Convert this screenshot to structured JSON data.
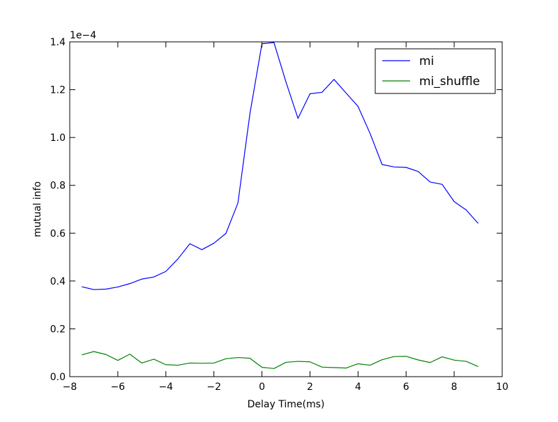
{
  "chart_data": {
    "type": "line",
    "title": "",
    "xlabel": "Delay Time(ms)",
    "ylabel": "mutual info",
    "y_offset_text": "1e−4",
    "xlim": [
      -8,
      10
    ],
    "ylim": [
      0.0,
      1.4
    ],
    "xticks": [
      -8,
      -6,
      -4,
      -2,
      0,
      2,
      4,
      6,
      8,
      10
    ],
    "xtick_labels": [
      "−8",
      "−6",
      "−4",
      "−2",
      "0",
      "2",
      "4",
      "6",
      "8",
      "10"
    ],
    "yticks": [
      0.0,
      0.2,
      0.4,
      0.6,
      0.8,
      1.0,
      1.2,
      1.4
    ],
    "ytick_labels": [
      "0.0",
      "0.2",
      "0.4",
      "0.6",
      "0.8",
      "1.0",
      "1.2",
      "1.4"
    ],
    "grid": false,
    "legend_position": "top-right",
    "x": [
      -7.5,
      -7.0,
      -6.5,
      -6.0,
      -5.5,
      -5.0,
      -4.5,
      -4.0,
      -3.5,
      -3.0,
      -2.5,
      -2.0,
      -1.5,
      -1.0,
      -0.5,
      0.0,
      0.5,
      1.0,
      1.5,
      2.0,
      2.5,
      3.0,
      3.5,
      4.0,
      4.5,
      5.0,
      5.5,
      6.0,
      6.5,
      7.0,
      7.5,
      8.0,
      8.5,
      9.0
    ],
    "series": [
      {
        "name": "mi",
        "color": "#0000ff",
        "values": [
          0.376,
          0.364,
          0.366,
          0.375,
          0.389,
          0.408,
          0.417,
          0.44,
          0.492,
          0.556,
          0.531,
          0.558,
          0.599,
          0.726,
          1.1,
          1.392,
          1.397,
          1.232,
          1.08,
          1.183,
          1.189,
          1.243,
          1.186,
          1.13,
          1.017,
          0.887,
          0.877,
          0.875,
          0.858,
          0.814,
          0.804,
          0.732,
          0.697,
          0.641
        ]
      },
      {
        "name": "mi_shuffle",
        "color": "#008000",
        "values": [
          0.091,
          0.105,
          0.093,
          0.068,
          0.094,
          0.057,
          0.073,
          0.05,
          0.048,
          0.057,
          0.056,
          0.057,
          0.075,
          0.08,
          0.077,
          0.039,
          0.034,
          0.06,
          0.064,
          0.062,
          0.04,
          0.038,
          0.036,
          0.054,
          0.048,
          0.071,
          0.084,
          0.085,
          0.07,
          0.059,
          0.083,
          0.069,
          0.064,
          0.042
        ]
      }
    ]
  }
}
